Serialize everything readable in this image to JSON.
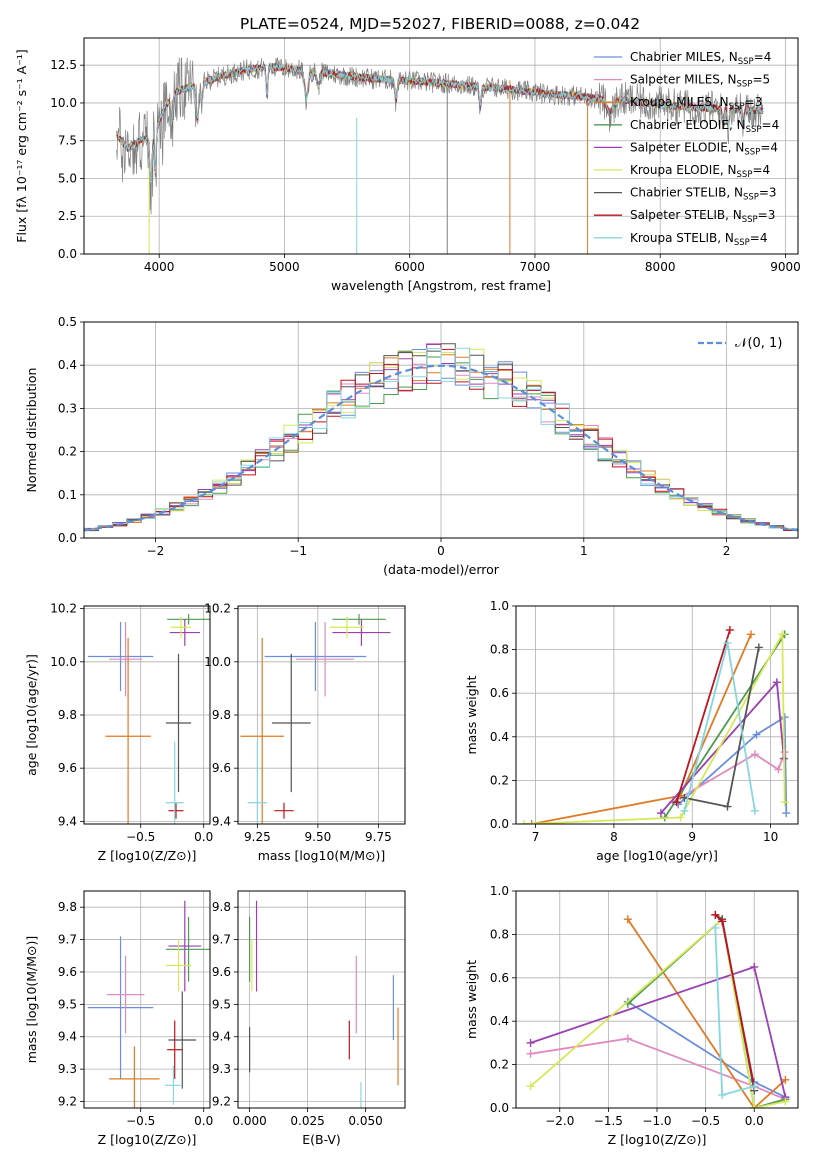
{
  "figure": {
    "title": "PLATE=0524, MJD=52027, FIBERID=0088, z=0.042"
  },
  "colors": {
    "Chabrier MILES": "#6a8fdc",
    "Salpeter MILES": "#e08ac0",
    "Kroupa MILES": "#e07a24",
    "Chabrier ELODIE": "#4e9a4e",
    "Salpeter ELODIE": "#9b3fb3",
    "Kroupa ELODIE": "#d6e85a",
    "Chabrier STELIB": "#555555",
    "Salpeter STELIB": "#c0141c",
    "Kroupa STELIB": "#86d6e0"
  },
  "chart_data": [
    {
      "id": "spectrum",
      "type": "line",
      "title": "PLATE=0524, MJD=52027, FIBERID=0088, z=0.042",
      "xlabel": "wavelength [Angstrom, rest frame]",
      "ylabel": "Flux [fλ 10⁻¹⁷ erg cm⁻² s⁻¹ A⁻¹]",
      "xlim": [
        3400,
        9100
      ],
      "ylim": [
        0,
        14.3
      ],
      "xticks": [
        4000,
        5000,
        6000,
        7000,
        8000,
        9000
      ],
      "yticks": [
        0.0,
        2.5,
        5.0,
        7.5,
        10.0,
        12.5
      ],
      "legend_position": "right",
      "series": [
        {
          "name": "Chabrier MILES, N_SSP=4"
        },
        {
          "name": "Salpeter MILES, N_SSP=5"
        },
        {
          "name": "Kroupa MILES, N_SSP=3"
        },
        {
          "name": "Chabrier ELODIE, N_SSP=4"
        },
        {
          "name": "Salpeter ELODIE, N_SSP=4"
        },
        {
          "name": "Kroupa ELODIE, N_SSP=4"
        },
        {
          "name": "Chabrier STELIB, N_SSP=3"
        },
        {
          "name": "Salpeter STELIB, N_SSP=3"
        },
        {
          "name": "Kroupa STELIB, N_SSP=4"
        }
      ],
      "continuum_x": [
        3650,
        3750,
        3850,
        3950,
        4050,
        4150,
        4300,
        4500,
        4700,
        4900,
        5100,
        5300,
        5500,
        5700,
        5900,
        6100,
        6300,
        6500,
        6700,
        6900,
        7100,
        7300,
        7500,
        7700,
        7900,
        8100,
        8300,
        8500,
        8700,
        8820
      ],
      "continuum_y": [
        8.0,
        7.0,
        7.5,
        7.8,
        9.8,
        10.8,
        11.2,
        11.8,
        12.2,
        12.4,
        12.2,
        12.0,
        11.8,
        11.6,
        11.5,
        11.4,
        11.3,
        11.1,
        11.0,
        10.8,
        10.6,
        10.5,
        10.3,
        10.2,
        10.0,
        9.8,
        9.7,
        9.6,
        9.5,
        9.5
      ]
    },
    {
      "id": "residuals",
      "type": "bar",
      "xlabel": "(data-model)/error",
      "ylabel": "Normed distribution",
      "xlim": [
        -2.5,
        2.5
      ],
      "ylim": [
        0,
        0.5
      ],
      "xticks": [
        -2,
        -1,
        0,
        1,
        2
      ],
      "yticks": [
        0.0,
        0.1,
        0.2,
        0.3,
        0.4,
        0.5
      ],
      "reference": {
        "name": "𝒩(0, 1)",
        "color": "#5b8fd9"
      },
      "bin_width": 0.1,
      "bin_start": -2.5
    },
    {
      "id": "age-vs-Z",
      "type": "scatter",
      "xlabel": "Z [log10(Z/Z⊙)]",
      "ylabel": "age  [log10(age/yr)]",
      "xlim": [
        -0.95,
        0.05
      ],
      "ylim": [
        9.39,
        10.21
      ],
      "xticks": [
        -0.5,
        0.0
      ],
      "yticks": [
        9.4,
        9.6,
        9.8,
        10.0,
        10.2
      ],
      "points": [
        {
          "model": "Chabrier MILES",
          "x": -0.66,
          "xerr": 0.26,
          "y": 10.02,
          "yerr": 0.13
        },
        {
          "model": "Salpeter MILES",
          "x": -0.62,
          "xerr": 0.13,
          "y": 10.01,
          "yerr": 0.14
        },
        {
          "model": "Kroupa MILES",
          "x": -0.6,
          "xerr": 0.18,
          "y": 9.72,
          "yerr": 0.37
        },
        {
          "model": "Chabrier ELODIE",
          "x": -0.12,
          "xerr": 0.17,
          "y": 10.16,
          "yerr": 0.02
        },
        {
          "model": "Salpeter ELODIE",
          "x": -0.15,
          "xerr": 0.12,
          "y": 10.11,
          "yerr": 0.05
        },
        {
          "model": "Kroupa ELODIE",
          "x": -0.18,
          "xerr": 0.08,
          "y": 10.13,
          "yerr": 0.04
        },
        {
          "model": "Chabrier STELIB",
          "x": -0.2,
          "xerr": 0.1,
          "y": 9.77,
          "yerr": 0.26
        },
        {
          "model": "Salpeter STELIB",
          "x": -0.22,
          "xerr": 0.06,
          "y": 9.44,
          "yerr": 0.03
        },
        {
          "model": "Kroupa STELIB",
          "x": -0.23,
          "xerr": 0.07,
          "y": 9.47,
          "yerr": 0.23
        }
      ]
    },
    {
      "id": "age-vs-mass",
      "type": "scatter",
      "xlabel": "mass [log10(M/M⊙)]",
      "ylabel": "",
      "xlim": [
        9.17,
        9.86
      ],
      "ylim": [
        9.39,
        10.21
      ],
      "xticks": [
        9.25,
        9.5,
        9.75
      ],
      "yticks": [
        9.4,
        9.6,
        9.8,
        10.0,
        10.2
      ],
      "points": [
        {
          "model": "Chabrier MILES",
          "x": 9.49,
          "xerr": 0.21,
          "y": 10.02,
          "yerr": 0.13
        },
        {
          "model": "Salpeter MILES",
          "x": 9.53,
          "xerr": 0.12,
          "y": 10.01,
          "yerr": 0.14
        },
        {
          "model": "Kroupa MILES",
          "x": 9.27,
          "xerr": 0.09,
          "y": 9.72,
          "yerr": 0.37
        },
        {
          "model": "Chabrier ELODIE",
          "x": 9.67,
          "xerr": 0.11,
          "y": 10.16,
          "yerr": 0.02
        },
        {
          "model": "Salpeter ELODIE",
          "x": 9.68,
          "xerr": 0.12,
          "y": 10.11,
          "yerr": 0.05
        },
        {
          "model": "Kroupa ELODIE",
          "x": 9.62,
          "xerr": 0.07,
          "y": 10.13,
          "yerr": 0.04
        },
        {
          "model": "Chabrier STELIB",
          "x": 9.39,
          "xerr": 0.08,
          "y": 9.77,
          "yerr": 0.26
        },
        {
          "model": "Salpeter STELIB",
          "x": 9.36,
          "xerr": 0.04,
          "y": 9.44,
          "yerr": 0.03
        },
        {
          "model": "Kroupa STELIB",
          "x": 9.25,
          "xerr": 0.04,
          "y": 9.47,
          "yerr": 0.23
        }
      ]
    },
    {
      "id": "weight-vs-age",
      "type": "line",
      "xlabel": "age  [log10(age/yr)]",
      "ylabel": "mass weight",
      "xlim": [
        6.75,
        10.35
      ],
      "ylim": [
        0,
        1.0
      ],
      "xticks": [
        7,
        8,
        9,
        10
      ],
      "yticks": [
        0.0,
        0.2,
        0.4,
        0.6,
        0.8,
        1.0
      ],
      "series": [
        {
          "model": "Chabrier MILES",
          "x": [
            8.82,
            9.82,
            10.18,
            10.2
          ],
          "y": [
            0.09,
            0.41,
            0.49,
            0.05
          ]
        },
        {
          "model": "Salpeter MILES",
          "x": [
            8.75,
            9.8,
            10.1,
            10.18
          ],
          "y": [
            0.1,
            0.32,
            0.25,
            0.33
          ]
        },
        {
          "model": "Kroupa MILES",
          "x": [
            6.95,
            8.85,
            9.75
          ],
          "y": [
            0.0,
            0.13,
            0.87
          ]
        },
        {
          "model": "Chabrier ELODIE",
          "x": [
            8.65,
            10.18
          ],
          "y": [
            0.03,
            0.87
          ]
        },
        {
          "model": "Salpeter ELODIE",
          "x": [
            8.6,
            10.08,
            10.17
          ],
          "y": [
            0.05,
            0.65,
            0.3
          ]
        },
        {
          "model": "Kroupa ELODIE",
          "x": [
            6.85,
            8.85,
            10.15,
            10.18
          ],
          "y": [
            0.0,
            0.03,
            0.87,
            0.1
          ]
        },
        {
          "model": "Chabrier STELIB",
          "x": [
            8.9,
            9.45,
            9.85
          ],
          "y": [
            0.12,
            0.08,
            0.81
          ]
        },
        {
          "model": "Salpeter STELIB",
          "x": [
            8.8,
            9.48
          ],
          "y": [
            0.1,
            0.89
          ]
        },
        {
          "model": "Kroupa STELIB",
          "x": [
            8.9,
            9.45,
            9.8
          ],
          "y": [
            0.06,
            0.83,
            0.06
          ]
        }
      ]
    },
    {
      "id": "mass-vs-Z",
      "type": "scatter",
      "xlabel": "Z [log10(Z/Z⊙)]",
      "ylabel": "mass [log10(M/M⊙)]",
      "xlim": [
        -0.95,
        0.05
      ],
      "ylim": [
        9.18,
        9.85
      ],
      "xticks": [
        -0.5,
        0.0
      ],
      "yticks": [
        9.2,
        9.3,
        9.4,
        9.5,
        9.6,
        9.7,
        9.8
      ],
      "points": [
        {
          "model": "Chabrier MILES",
          "x": -0.66,
          "xerr": 0.26,
          "y": 9.49,
          "yerr": 0.22
        },
        {
          "model": "Salpeter MILES",
          "x": -0.62,
          "xerr": 0.15,
          "y": 9.53,
          "yerr": 0.12
        },
        {
          "model": "Kroupa MILES",
          "x": -0.55,
          "xerr": 0.2,
          "y": 9.27,
          "yerr": 0.1
        },
        {
          "model": "Chabrier ELODIE",
          "x": -0.12,
          "xerr": 0.18,
          "y": 9.67,
          "yerr": 0.1
        },
        {
          "model": "Salpeter ELODIE",
          "x": -0.15,
          "xerr": 0.13,
          "y": 9.68,
          "yerr": 0.14
        },
        {
          "model": "Kroupa ELODIE",
          "x": -0.2,
          "xerr": 0.1,
          "y": 9.62,
          "yerr": 0.08
        },
        {
          "model": "Chabrier STELIB",
          "x": -0.17,
          "xerr": 0.11,
          "y": 9.39,
          "yerr": 0.15
        },
        {
          "model": "Salpeter STELIB",
          "x": -0.23,
          "xerr": 0.06,
          "y": 9.36,
          "yerr": 0.09
        },
        {
          "model": "Kroupa STELIB",
          "x": -0.24,
          "xerr": 0.07,
          "y": 9.25,
          "yerr": 0.06
        }
      ]
    },
    {
      "id": "mass-vs-ebv",
      "type": "scatter",
      "xlabel": "E(B-V)",
      "ylabel": "",
      "xlim": [
        -0.005,
        0.067
      ],
      "ylim": [
        9.18,
        9.85
      ],
      "xticks": [
        0.0,
        0.025,
        0.05
      ],
      "yticks": [
        9.2,
        9.3,
        9.4,
        9.5,
        9.6,
        9.7,
        9.8
      ],
      "points": [
        {
          "model": "Chabrier MILES",
          "x": 0.062,
          "y": 9.49,
          "yerr": 0.1
        },
        {
          "model": "Salpeter MILES",
          "x": 0.046,
          "y": 9.53,
          "yerr": 0.12
        },
        {
          "model": "Kroupa MILES",
          "x": 0.064,
          "y": 9.37,
          "yerr": 0.12
        },
        {
          "model": "Chabrier ELODIE",
          "x": 0.0,
          "y": 9.67,
          "yerr": 0.1
        },
        {
          "model": "Salpeter ELODIE",
          "x": 0.003,
          "y": 9.68,
          "yerr": 0.14
        },
        {
          "model": "Kroupa ELODIE",
          "x": 0.001,
          "y": 9.62,
          "yerr": 0.08
        },
        {
          "model": "Chabrier STELIB",
          "x": 0.0,
          "y": 9.36,
          "yerr": 0.07
        },
        {
          "model": "Salpeter STELIB",
          "x": 0.043,
          "y": 9.39,
          "yerr": 0.06
        },
        {
          "model": "Kroupa STELIB",
          "x": 0.048,
          "y": 9.22,
          "yerr": 0.04
        }
      ]
    },
    {
      "id": "weight-vs-Z",
      "type": "line",
      "xlabel": "Z [log10(Z/Z⊙)]",
      "ylabel": "mass weight",
      "xlim": [
        -2.45,
        0.45
      ],
      "ylim": [
        0,
        1.0
      ],
      "xticks": [
        -2.0,
        -1.5,
        -1.0,
        -0.5,
        0.0
      ],
      "yticks": [
        0.0,
        0.2,
        0.4,
        0.6,
        0.8,
        1.0
      ],
      "series": [
        {
          "model": "Chabrier MILES",
          "x": [
            -1.3,
            0.0,
            0.32
          ],
          "y": [
            0.49,
            0.12,
            0.05
          ]
        },
        {
          "model": "Salpeter MILES",
          "x": [
            -2.3,
            -1.3,
            0.0,
            0.32
          ],
          "y": [
            0.25,
            0.32,
            0.1,
            0.04
          ]
        },
        {
          "model": "Kroupa MILES",
          "x": [
            -1.3,
            0.0,
            0.32
          ],
          "y": [
            0.87,
            0.0,
            0.13
          ]
        },
        {
          "model": "Chabrier ELODIE",
          "x": [
            -1.3,
            -0.33,
            0.0,
            0.32
          ],
          "y": [
            0.48,
            0.87,
            0.0,
            0.04
          ]
        },
        {
          "model": "Salpeter ELODIE",
          "x": [
            -2.3,
            0.0,
            0.32
          ],
          "y": [
            0.3,
            0.65,
            0.05
          ]
        },
        {
          "model": "Kroupa ELODIE",
          "x": [
            -2.3,
            -0.33,
            0.0,
            0.32
          ],
          "y": [
            0.1,
            0.87,
            0.0,
            0.03
          ]
        },
        {
          "model": "Chabrier STELIB",
          "x": [
            -0.4,
            -0.33,
            0.0
          ],
          "y": [
            0.89,
            0.87,
            0.08
          ]
        },
        {
          "model": "Salpeter STELIB",
          "x": [
            -0.4,
            -0.33,
            0.0
          ],
          "y": [
            0.89,
            0.86,
            0.1
          ]
        },
        {
          "model": "Kroupa STELIB",
          "x": [
            -0.4,
            -0.33,
            0.0
          ],
          "y": [
            0.83,
            0.06,
            0.1
          ]
        }
      ]
    }
  ]
}
